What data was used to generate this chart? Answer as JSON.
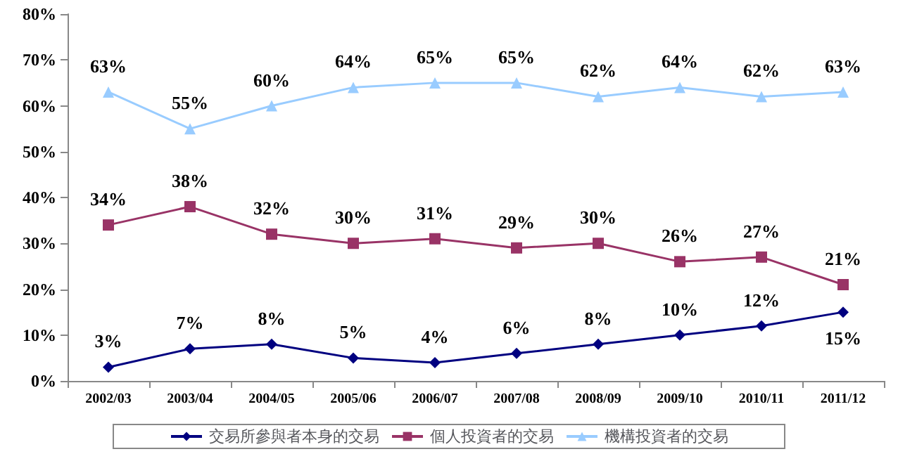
{
  "chart_data": {
    "type": "line",
    "categories": [
      "2002/03",
      "2003/04",
      "2004/05",
      "2005/06",
      "2006/07",
      "2007/08",
      "2008/09",
      "2009/10",
      "2010/11",
      "2011/12"
    ],
    "series": [
      {
        "name": "交易所參與者本身的交易",
        "color": "#000080",
        "marker": "diamond",
        "values": [
          3,
          7,
          8,
          5,
          4,
          6,
          8,
          10,
          12,
          15
        ],
        "value_labels": [
          "3%",
          "7%",
          "8%",
          "5%",
          "4%",
          "6%",
          "8%",
          "10%",
          "12%",
          "15%"
        ]
      },
      {
        "name": "個人投資者的交易",
        "color": "#993366",
        "marker": "square",
        "values": [
          34,
          38,
          32,
          30,
          31,
          29,
          30,
          26,
          27,
          21
        ],
        "value_labels": [
          "34%",
          "38%",
          "32%",
          "30%",
          "31%",
          "29%",
          "30%",
          "26%",
          "27%",
          "21%"
        ]
      },
      {
        "name": "機構投資者的交易",
        "color": "#99ccff",
        "marker": "triangle",
        "values": [
          63,
          55,
          60,
          64,
          65,
          65,
          62,
          64,
          62,
          63
        ],
        "value_labels": [
          "63%",
          "55%",
          "60%",
          "64%",
          "65%",
          "65%",
          "62%",
          "64%",
          "62%",
          "63%"
        ]
      }
    ],
    "ylim": [
      0,
      80
    ],
    "yticks": [
      {
        "value": 0,
        "label": "0%"
      },
      {
        "value": 10,
        "label": "10%"
      },
      {
        "value": 20,
        "label": "20%"
      },
      {
        "value": 30,
        "label": "30%"
      },
      {
        "value": 40,
        "label": "40%"
      },
      {
        "value": 50,
        "label": "50%"
      },
      {
        "value": 60,
        "label": "60%"
      },
      {
        "value": 70,
        "label": "70%"
      },
      {
        "value": 80,
        "label": "80%"
      }
    ],
    "grid": false,
    "legend": "bottom",
    "line_style": "solid"
  }
}
